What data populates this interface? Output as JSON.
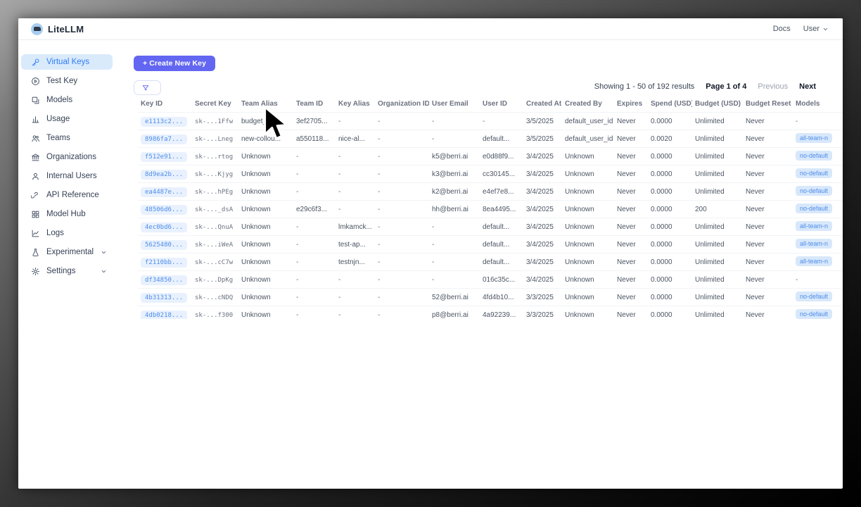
{
  "colors": {
    "accent": "#6366f1",
    "sidebar_selected_bg": "#d9eafb",
    "sidebar_selected_text": "#2e7cf6",
    "key_chip_bg": "#e8f1fd",
    "key_chip_text": "#4f8dea",
    "model_chip_bg": "#d8e8fb"
  },
  "header": {
    "brand": "LiteLLM",
    "docs_label": "Docs",
    "user_label": "User"
  },
  "sidebar": {
    "items": [
      {
        "label": "Virtual Keys",
        "icon": "key",
        "active": true
      },
      {
        "label": "Test Key",
        "icon": "play"
      },
      {
        "label": "Models",
        "icon": "block"
      },
      {
        "label": "Usage",
        "icon": "bar-chart"
      },
      {
        "label": "Teams",
        "icon": "team"
      },
      {
        "label": "Organizations",
        "icon": "bank"
      },
      {
        "label": "Internal Users",
        "icon": "user"
      },
      {
        "label": "API Reference",
        "icon": "link"
      },
      {
        "label": "Model Hub",
        "icon": "appstore"
      },
      {
        "label": "Logs",
        "icon": "line-chart"
      },
      {
        "label": "Experimental",
        "icon": "experiment",
        "chevron": true
      },
      {
        "label": "Settings",
        "icon": "gear",
        "chevron": true
      }
    ]
  },
  "toolbar": {
    "create_button": "+ Create New Key",
    "filter_button": "Filter"
  },
  "pagination": {
    "showing": "Showing 1 - 50 of 192 results",
    "page": "Page 1 of 4",
    "previous": "Previous",
    "next": "Next"
  },
  "table": {
    "columns": [
      {
        "key": "key_id",
        "label": "Key ID"
      },
      {
        "key": "secret_key",
        "label": "Secret Key"
      },
      {
        "key": "team_alias",
        "label": "Team Alias"
      },
      {
        "key": "team_id",
        "label": "Team ID"
      },
      {
        "key": "key_alias",
        "label": "Key Alias"
      },
      {
        "key": "organization_id",
        "label": "Organization ID"
      },
      {
        "key": "user_email",
        "label": "User Email"
      },
      {
        "key": "user_id",
        "label": "User ID"
      },
      {
        "key": "created_at",
        "label": "Created At"
      },
      {
        "key": "created_by",
        "label": "Created By"
      },
      {
        "key": "expires",
        "label": "Expires"
      },
      {
        "key": "spend",
        "label": "Spend (USD)"
      },
      {
        "key": "budget",
        "label": "Budget (USD)"
      },
      {
        "key": "budget_reset",
        "label": "Budget Reset"
      },
      {
        "key": "models",
        "label": "Models"
      }
    ],
    "rows": [
      {
        "key_id": "e1113c2...",
        "secret_key": "sk-...1Ffw",
        "team_alias": "budget_tea...",
        "team_id": "3ef2705...",
        "key_alias": "-",
        "organization_id": "-",
        "user_email": "-",
        "user_id": "-",
        "created_at": "3/5/2025",
        "created_by": "default_user_id",
        "expires": "Never",
        "spend": "0.0000",
        "budget": "Unlimited",
        "budget_reset": "Never",
        "models": "-"
      },
      {
        "key_id": "8986fa7...",
        "secret_key": "sk-...Lneg",
        "team_alias": "new-collou...",
        "team_id": "a550118...",
        "key_alias": "nice-al...",
        "organization_id": "-",
        "user_email": "-",
        "user_id": "default...",
        "created_at": "3/5/2025",
        "created_by": "default_user_id",
        "expires": "Never",
        "spend": "0.0020",
        "budget": "Unlimited",
        "budget_reset": "Never",
        "models": "all-team-n"
      },
      {
        "key_id": "f512e91...",
        "secret_key": "sk-...rtog",
        "team_alias": "Unknown",
        "team_id": "-",
        "key_alias": "-",
        "organization_id": "-",
        "user_email": "k5@berri.ai",
        "user_id": "e0d88f9...",
        "created_at": "3/4/2025",
        "created_by": "Unknown",
        "expires": "Never",
        "spend": "0.0000",
        "budget": "Unlimited",
        "budget_reset": "Never",
        "models": "no-default"
      },
      {
        "key_id": "8d9ea2b...",
        "secret_key": "sk-...Kjyg",
        "team_alias": "Unknown",
        "team_id": "-",
        "key_alias": "-",
        "organization_id": "-",
        "user_email": "k3@berri.ai",
        "user_id": "cc30145...",
        "created_at": "3/4/2025",
        "created_by": "Unknown",
        "expires": "Never",
        "spend": "0.0000",
        "budget": "Unlimited",
        "budget_reset": "Never",
        "models": "no-default"
      },
      {
        "key_id": "ea4487e...",
        "secret_key": "sk-...hPEg",
        "team_alias": "Unknown",
        "team_id": "-",
        "key_alias": "-",
        "organization_id": "-",
        "user_email": "k2@berri.ai",
        "user_id": "e4ef7e8...",
        "created_at": "3/4/2025",
        "created_by": "Unknown",
        "expires": "Never",
        "spend": "0.0000",
        "budget": "Unlimited",
        "budget_reset": "Never",
        "models": "no-default"
      },
      {
        "key_id": "48506d6...",
        "secret_key": "sk-..._dsA",
        "team_alias": "Unknown",
        "team_id": "e29c6f3...",
        "key_alias": "-",
        "organization_id": "-",
        "user_email": "hh@berri.ai",
        "user_id": "8ea4495...",
        "created_at": "3/4/2025",
        "created_by": "Unknown",
        "expires": "Never",
        "spend": "0.0000",
        "budget": "200",
        "budget_reset": "Never",
        "models": "no-default"
      },
      {
        "key_id": "4ec0bd6...",
        "secret_key": "sk-...QnuA",
        "team_alias": "Unknown",
        "team_id": "-",
        "key_alias": "lmkamck...",
        "organization_id": "-",
        "user_email": "-",
        "user_id": "default...",
        "created_at": "3/4/2025",
        "created_by": "Unknown",
        "expires": "Never",
        "spend": "0.0000",
        "budget": "Unlimited",
        "budget_reset": "Never",
        "models": "all-team-n"
      },
      {
        "key_id": "5625480...",
        "secret_key": "sk-...iWeA",
        "team_alias": "Unknown",
        "team_id": "-",
        "key_alias": "test-ap...",
        "organization_id": "-",
        "user_email": "-",
        "user_id": "default...",
        "created_at": "3/4/2025",
        "created_by": "Unknown",
        "expires": "Never",
        "spend": "0.0000",
        "budget": "Unlimited",
        "budget_reset": "Never",
        "models": "all-team-n"
      },
      {
        "key_id": "f2110bb...",
        "secret_key": "sk-...cC7w",
        "team_alias": "Unknown",
        "team_id": "-",
        "key_alias": "testnjn...",
        "organization_id": "-",
        "user_email": "-",
        "user_id": "default...",
        "created_at": "3/4/2025",
        "created_by": "Unknown",
        "expires": "Never",
        "spend": "0.0000",
        "budget": "Unlimited",
        "budget_reset": "Never",
        "models": "all-team-n"
      },
      {
        "key_id": "df34850...",
        "secret_key": "sk-...DpKg",
        "team_alias": "Unknown",
        "team_id": "-",
        "key_alias": "-",
        "organization_id": "-",
        "user_email": "-",
        "user_id": "016c35c...",
        "created_at": "3/4/2025",
        "created_by": "Unknown",
        "expires": "Never",
        "spend": "0.0000",
        "budget": "Unlimited",
        "budget_reset": "Never",
        "models": "-"
      },
      {
        "key_id": "4b31313...",
        "secret_key": "sk-...cNDQ",
        "team_alias": "Unknown",
        "team_id": "-",
        "key_alias": "-",
        "organization_id": "-",
        "user_email": "52@berri.ai",
        "user_id": "4fd4b10...",
        "created_at": "3/3/2025",
        "created_by": "Unknown",
        "expires": "Never",
        "spend": "0.0000",
        "budget": "Unlimited",
        "budget_reset": "Never",
        "models": "no-default"
      },
      {
        "key_id": "4db0218...",
        "secret_key": "sk-...f300",
        "team_alias": "Unknown",
        "team_id": "-",
        "key_alias": "-",
        "organization_id": "-",
        "user_email": "p8@berri.ai",
        "user_id": "4a92239...",
        "created_at": "3/3/2025",
        "created_by": "Unknown",
        "expires": "Never",
        "spend": "0.0000",
        "budget": "Unlimited",
        "budget_reset": "Never",
        "models": "no-default"
      }
    ]
  }
}
